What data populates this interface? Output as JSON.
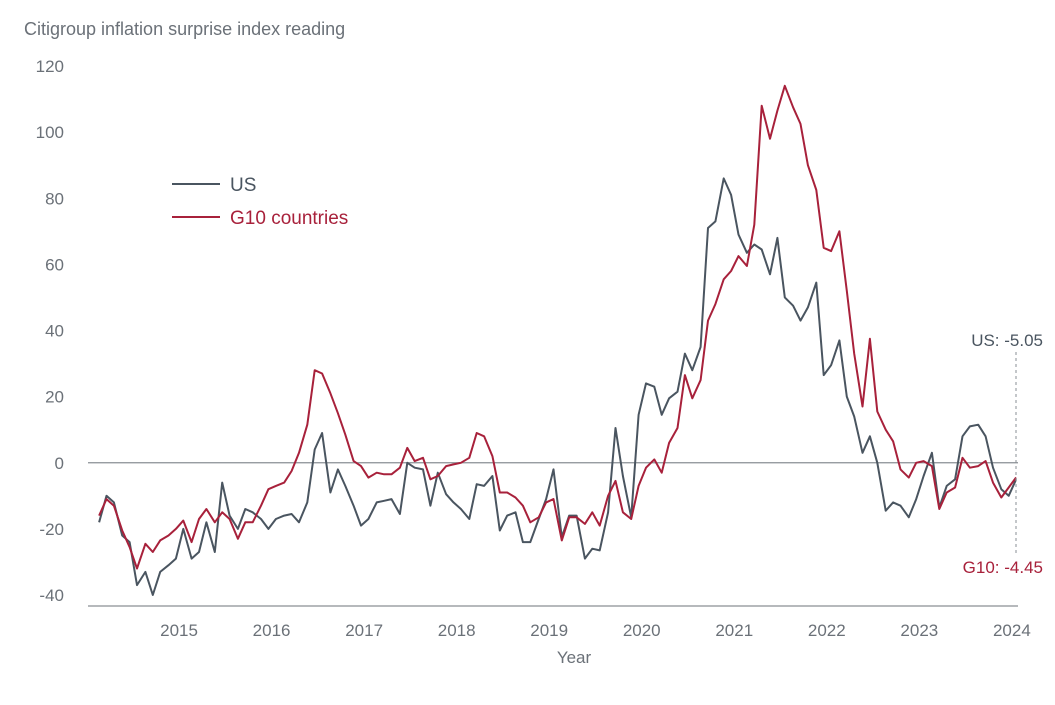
{
  "chart_data": {
    "type": "line",
    "title": "",
    "ylabel": "Citigroup inflation surprise index reading",
    "xlabel": "Year",
    "ylim": [
      -45,
      125
    ],
    "yticks": [
      120,
      100,
      80,
      60,
      40,
      20,
      0,
      -20,
      -40
    ],
    "xlim": [
      2014.3,
      2024.35
    ],
    "xticks": [
      "2015",
      "2016",
      "2017",
      "2018",
      "2019",
      "2020",
      "2021",
      "2022",
      "2023",
      "2024"
    ],
    "grid": false,
    "zero_line": true,
    "legend": {
      "position": "upper-left",
      "entries": [
        "US",
        "G10 countries"
      ]
    },
    "colors": {
      "US": "#4a5560",
      "G10 countries": "#a8213b",
      "axis": "#8a8f94",
      "text": "#6b7178"
    },
    "annotations": [
      {
        "text": "US: -5.05",
        "series": "US"
      },
      {
        "text": "G10: -4.45",
        "series": "G10 countries"
      }
    ],
    "series": [
      {
        "name": "US",
        "color": "#4a5560",
        "points": [
          [
            2014.42,
            -18
          ],
          [
            2014.5,
            -10
          ],
          [
            2014.58,
            -12
          ],
          [
            2014.67,
            -22
          ],
          [
            2014.75,
            -24
          ],
          [
            2014.83,
            -37
          ],
          [
            2014.92,
            -33
          ],
          [
            2015.0,
            -40
          ],
          [
            2015.08,
            -33
          ],
          [
            2015.17,
            -31
          ],
          [
            2015.25,
            -29
          ],
          [
            2015.33,
            -20
          ],
          [
            2015.42,
            -29
          ],
          [
            2015.5,
            -27
          ],
          [
            2015.58,
            -18
          ],
          [
            2015.67,
            -27
          ],
          [
            2015.75,
            -6
          ],
          [
            2015.83,
            -16
          ],
          [
            2015.92,
            -20
          ],
          [
            2016.0,
            -14
          ],
          [
            2016.08,
            -15
          ],
          [
            2016.17,
            -17
          ],
          [
            2016.25,
            -20
          ],
          [
            2016.33,
            -17
          ],
          [
            2016.42,
            -16
          ],
          [
            2016.5,
            -15.5
          ],
          [
            2016.58,
            -18
          ],
          [
            2016.67,
            -12
          ],
          [
            2016.75,
            4
          ],
          [
            2016.83,
            9
          ],
          [
            2016.92,
            -9
          ],
          [
            2017.0,
            -2
          ],
          [
            2017.08,
            -7
          ],
          [
            2017.17,
            -13
          ],
          [
            2017.25,
            -19
          ],
          [
            2017.33,
            -17
          ],
          [
            2017.42,
            -12
          ],
          [
            2017.5,
            -11.5
          ],
          [
            2017.58,
            -11
          ],
          [
            2017.67,
            -15.5
          ],
          [
            2017.75,
            0
          ],
          [
            2017.83,
            -1.5
          ],
          [
            2017.92,
            -2
          ],
          [
            2018.0,
            -13
          ],
          [
            2018.08,
            -3
          ],
          [
            2018.17,
            -9.5
          ],
          [
            2018.25,
            -12
          ],
          [
            2018.33,
            -14
          ],
          [
            2018.42,
            -17
          ],
          [
            2018.5,
            -6.5
          ],
          [
            2018.58,
            -7
          ],
          [
            2018.67,
            -4
          ],
          [
            2018.75,
            -20.5
          ],
          [
            2018.83,
            -16
          ],
          [
            2018.92,
            -15
          ],
          [
            2019.0,
            -24
          ],
          [
            2019.08,
            -24
          ],
          [
            2019.17,
            -17
          ],
          [
            2019.25,
            -11
          ],
          [
            2019.33,
            -2
          ],
          [
            2019.42,
            -22.5
          ],
          [
            2019.5,
            -16
          ],
          [
            2019.58,
            -16
          ],
          [
            2019.67,
            -29
          ],
          [
            2019.75,
            -26
          ],
          [
            2019.83,
            -26.5
          ],
          [
            2019.92,
            -15
          ],
          [
            2020.0,
            10.5
          ],
          [
            2020.08,
            -4
          ],
          [
            2020.17,
            -16.5
          ],
          [
            2020.25,
            14.5
          ],
          [
            2020.33,
            24
          ],
          [
            2020.42,
            23
          ],
          [
            2020.5,
            14.5
          ],
          [
            2020.58,
            19.5
          ],
          [
            2020.67,
            21.5
          ],
          [
            2020.75,
            33
          ],
          [
            2020.83,
            28
          ],
          [
            2020.92,
            35
          ],
          [
            2021.0,
            71
          ],
          [
            2021.08,
            73
          ],
          [
            2021.17,
            86
          ],
          [
            2021.25,
            81
          ],
          [
            2021.33,
            69
          ],
          [
            2021.42,
            63.5
          ],
          [
            2021.5,
            66
          ],
          [
            2021.58,
            64.5
          ],
          [
            2021.67,
            57
          ],
          [
            2021.75,
            68
          ],
          [
            2021.83,
            50
          ],
          [
            2021.92,
            47.5
          ],
          [
            2022.0,
            43
          ],
          [
            2022.08,
            47
          ],
          [
            2022.17,
            54.5
          ],
          [
            2022.25,
            26.5
          ],
          [
            2022.33,
            29.5
          ],
          [
            2022.42,
            37
          ],
          [
            2022.5,
            20
          ],
          [
            2022.58,
            14
          ],
          [
            2022.67,
            3
          ],
          [
            2022.75,
            8
          ],
          [
            2022.83,
            0
          ],
          [
            2022.92,
            -14.5
          ],
          [
            2023.0,
            -12
          ],
          [
            2023.08,
            -13
          ],
          [
            2023.17,
            -16.5
          ],
          [
            2023.25,
            -11
          ],
          [
            2023.33,
            -4
          ],
          [
            2023.42,
            3
          ],
          [
            2023.5,
            -13.5
          ],
          [
            2023.58,
            -7
          ],
          [
            2023.67,
            -5
          ],
          [
            2023.75,
            8
          ],
          [
            2023.83,
            11
          ],
          [
            2023.92,
            11.5
          ],
          [
            2024.0,
            8
          ],
          [
            2024.08,
            -1.5
          ],
          [
            2024.17,
            -8
          ],
          [
            2024.25,
            -10
          ],
          [
            2024.33,
            -5.05
          ]
        ]
      },
      {
        "name": "G10 countries",
        "color": "#a8213b",
        "points": [
          [
            2014.42,
            -16
          ],
          [
            2014.5,
            -11
          ],
          [
            2014.58,
            -13
          ],
          [
            2014.67,
            -20.5
          ],
          [
            2014.75,
            -25.5
          ],
          [
            2014.83,
            -32
          ],
          [
            2014.92,
            -24.5
          ],
          [
            2015.0,
            -27
          ],
          [
            2015.08,
            -23.5
          ],
          [
            2015.17,
            -22
          ],
          [
            2015.25,
            -20
          ],
          [
            2015.33,
            -17.5
          ],
          [
            2015.42,
            -24
          ],
          [
            2015.5,
            -17
          ],
          [
            2015.58,
            -14
          ],
          [
            2015.67,
            -18
          ],
          [
            2015.75,
            -15
          ],
          [
            2015.83,
            -17
          ],
          [
            2015.92,
            -23
          ],
          [
            2016.0,
            -18
          ],
          [
            2016.08,
            -18
          ],
          [
            2016.17,
            -13
          ],
          [
            2016.25,
            -8
          ],
          [
            2016.33,
            -7
          ],
          [
            2016.42,
            -6
          ],
          [
            2016.5,
            -2.5
          ],
          [
            2016.58,
            3
          ],
          [
            2016.67,
            11.5
          ],
          [
            2016.75,
            28
          ],
          [
            2016.83,
            27
          ],
          [
            2016.92,
            21
          ],
          [
            2017.0,
            15
          ],
          [
            2017.08,
            8.5
          ],
          [
            2017.17,
            0.5
          ],
          [
            2017.25,
            -1
          ],
          [
            2017.33,
            -4.5
          ],
          [
            2017.42,
            -3
          ],
          [
            2017.5,
            -3.5
          ],
          [
            2017.58,
            -3.5
          ],
          [
            2017.67,
            -1.5
          ],
          [
            2017.75,
            4.5
          ],
          [
            2017.83,
            0.5
          ],
          [
            2017.92,
            1.5
          ],
          [
            2018.0,
            -5
          ],
          [
            2018.08,
            -4
          ],
          [
            2018.17,
            -1
          ],
          [
            2018.25,
            -0.5
          ],
          [
            2018.33,
            0
          ],
          [
            2018.42,
            1.5
          ],
          [
            2018.5,
            9
          ],
          [
            2018.58,
            8
          ],
          [
            2018.67,
            2
          ],
          [
            2018.75,
            -9
          ],
          [
            2018.83,
            -9
          ],
          [
            2018.92,
            -10.5
          ],
          [
            2019.0,
            -13
          ],
          [
            2019.08,
            -18
          ],
          [
            2019.17,
            -16.5
          ],
          [
            2019.25,
            -12
          ],
          [
            2019.33,
            -11
          ],
          [
            2019.42,
            -23.5
          ],
          [
            2019.5,
            -16.5
          ],
          [
            2019.58,
            -16.5
          ],
          [
            2019.67,
            -18.5
          ],
          [
            2019.75,
            -15
          ],
          [
            2019.83,
            -19
          ],
          [
            2019.92,
            -10
          ],
          [
            2020.0,
            -5.5
          ],
          [
            2020.08,
            -15
          ],
          [
            2020.17,
            -17
          ],
          [
            2020.25,
            -7
          ],
          [
            2020.33,
            -1.5
          ],
          [
            2020.42,
            1
          ],
          [
            2020.5,
            -3
          ],
          [
            2020.58,
            6
          ],
          [
            2020.67,
            10.5
          ],
          [
            2020.75,
            26.5
          ],
          [
            2020.83,
            19.5
          ],
          [
            2020.92,
            25
          ],
          [
            2021.0,
            43
          ],
          [
            2021.08,
            48
          ],
          [
            2021.17,
            55.5
          ],
          [
            2021.25,
            58
          ],
          [
            2021.33,
            62.5
          ],
          [
            2021.42,
            59.5
          ],
          [
            2021.5,
            72
          ],
          [
            2021.58,
            108
          ],
          [
            2021.67,
            98
          ],
          [
            2021.75,
            106.5
          ],
          [
            2021.83,
            114
          ],
          [
            2021.92,
            107.5
          ],
          [
            2022.0,
            102.5
          ],
          [
            2022.08,
            90
          ],
          [
            2022.17,
            82.5
          ],
          [
            2022.25,
            65
          ],
          [
            2022.33,
            64
          ],
          [
            2022.42,
            70
          ],
          [
            2022.5,
            52
          ],
          [
            2022.58,
            33
          ],
          [
            2022.67,
            17
          ],
          [
            2022.75,
            37.5
          ],
          [
            2022.83,
            15.5
          ],
          [
            2022.92,
            10
          ],
          [
            2023.0,
            6.5
          ],
          [
            2023.08,
            -2
          ],
          [
            2023.17,
            -4.5
          ],
          [
            2023.25,
            0
          ],
          [
            2023.33,
            0.5
          ],
          [
            2023.42,
            -1
          ],
          [
            2023.5,
            -14
          ],
          [
            2023.58,
            -9
          ],
          [
            2023.67,
            -7.5
          ],
          [
            2023.75,
            1.5
          ],
          [
            2023.83,
            -1.5
          ],
          [
            2023.92,
            -1
          ],
          [
            2024.0,
            0.5
          ],
          [
            2024.08,
            -6
          ],
          [
            2024.17,
            -10.5
          ],
          [
            2024.25,
            -7.5
          ],
          [
            2024.33,
            -4.45
          ]
        ]
      }
    ]
  }
}
